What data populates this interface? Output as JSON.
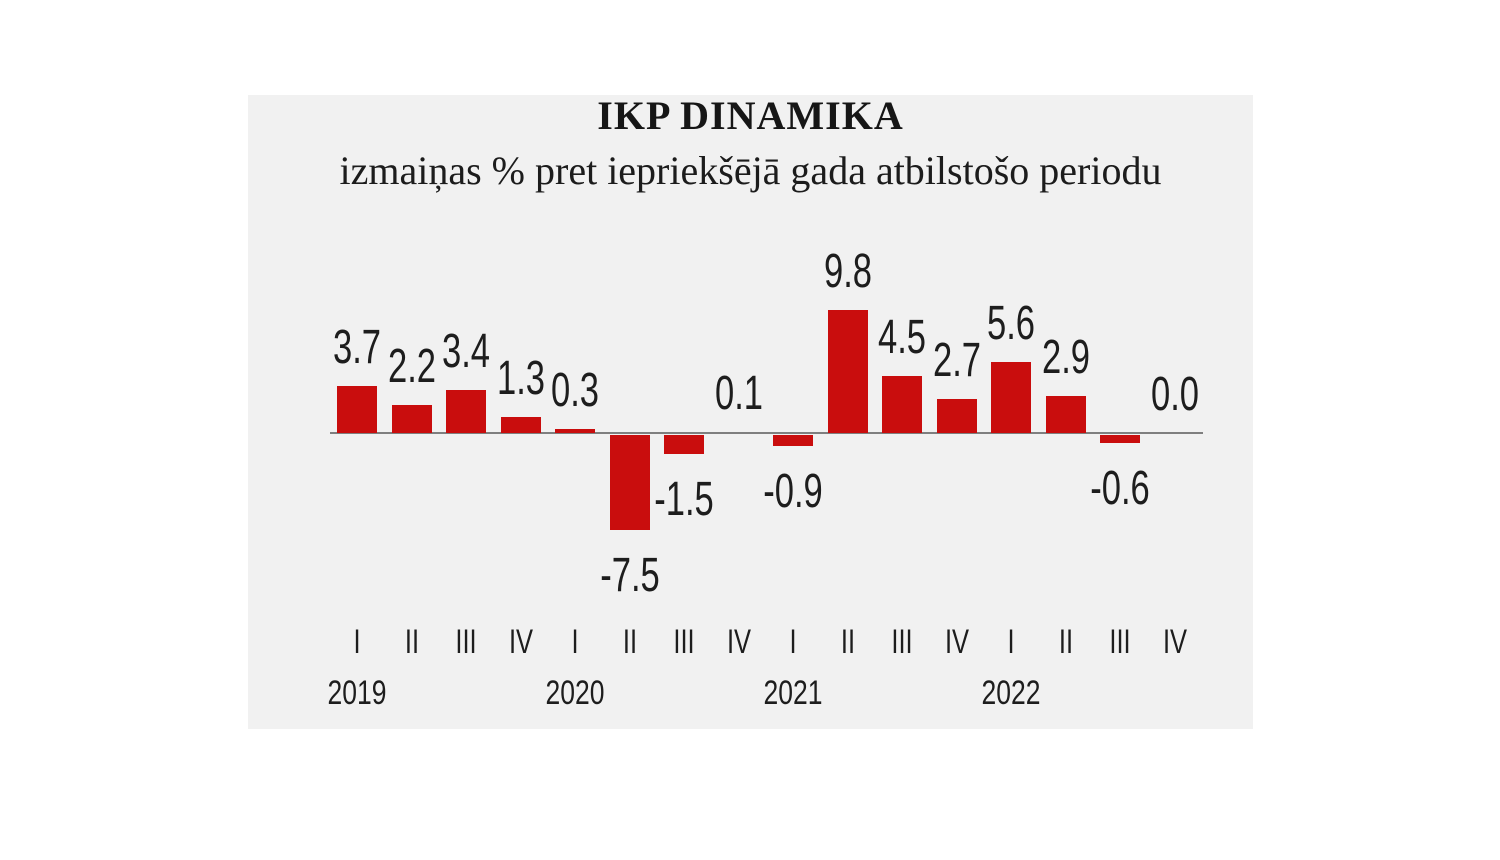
{
  "page": {
    "background": "#ffffff"
  },
  "chart_data": {
    "type": "bar",
    "title": "IKP DINAMIKA",
    "subtitle": "izmaiņas % pret iepriekšējā gada atbilstošo periodu",
    "categories": [
      "2019 I",
      "2019 II",
      "2019 III",
      "2019 IV",
      "2020 I",
      "2020 II",
      "2020 III",
      "2020 IV",
      "2021 I",
      "2021 II",
      "2021 III",
      "2021 IV",
      "2022 I",
      "2022 II",
      "2022 III",
      "2022 IV"
    ],
    "quarter_labels": [
      "I",
      "II",
      "III",
      "IV",
      "I",
      "II",
      "III",
      "IV",
      "I",
      "II",
      "III",
      "IV",
      "I",
      "II",
      "III",
      "IV"
    ],
    "year_labels": [
      {
        "label": "2019",
        "index": 0
      },
      {
        "label": "2020",
        "index": 4
      },
      {
        "label": "2021",
        "index": 8
      },
      {
        "label": "2022",
        "index": 12
      }
    ],
    "values": [
      3.7,
      2.2,
      3.4,
      1.3,
      0.3,
      -7.5,
      -1.5,
      0.1,
      -0.9,
      9.8,
      4.5,
      2.7,
      5.6,
      2.9,
      -0.6,
      0.0
    ],
    "value_labels": [
      "3.7",
      "2.2",
      "3.4",
      "1.3",
      "0.3",
      "-7.5",
      "-1.5",
      "0.1",
      "-0.9",
      "9.8",
      "4.5",
      "2.7",
      "5.6",
      "2.9",
      "-0.6",
      "0.0"
    ],
    "ylabel": "",
    "xlabel": "",
    "ylim": [
      -8.5,
      11
    ],
    "grid": false,
    "legend": false,
    "baseline": 0,
    "bar_color": "#c90d0d",
    "axis_color": "#7f7f7f",
    "text_color": "#1d1d1d",
    "panel_background": "#f1f1f1"
  }
}
